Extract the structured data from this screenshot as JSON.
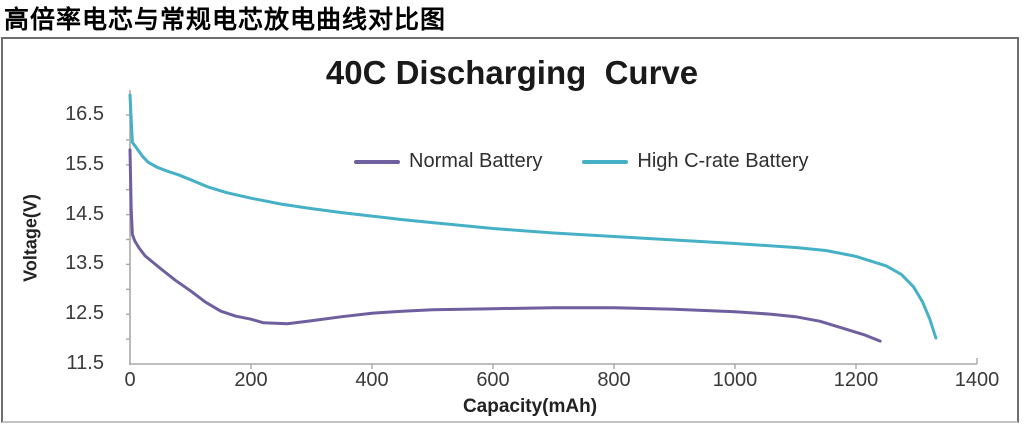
{
  "page": {
    "title": "高倍率电芯与常规电芯放电曲线对比图"
  },
  "chart_data": {
    "type": "line",
    "title": "40C Discharging  Curve",
    "xlabel": "Capacity(mAh)",
    "ylabel": "Voltage(V)",
    "xlim": [
      0,
      1400
    ],
    "ylim": [
      11.5,
      17.0
    ],
    "xticks": [
      0,
      200,
      400,
      600,
      800,
      1000,
      1200,
      1400
    ],
    "yticks": [
      16.5,
      15.5,
      14.5,
      13.5,
      12.5,
      11.5
    ],
    "grid": false,
    "legend_position": "top-center-inside",
    "axis_color": "#a8a8a8",
    "tick_label_color": "#3a3a3a",
    "series": [
      {
        "name": "Normal Battery",
        "color": "#6f5f9f",
        "points": [
          [
            0,
            15.8
          ],
          [
            2,
            14.6
          ],
          [
            4,
            14.1
          ],
          [
            8,
            13.97
          ],
          [
            15,
            13.83
          ],
          [
            25,
            13.67
          ],
          [
            50,
            13.42
          ],
          [
            75,
            13.18
          ],
          [
            100,
            12.97
          ],
          [
            125,
            12.74
          ],
          [
            150,
            12.56
          ],
          [
            175,
            12.46
          ],
          [
            200,
            12.4
          ],
          [
            220,
            12.33
          ],
          [
            260,
            12.31
          ],
          [
            300,
            12.37
          ],
          [
            350,
            12.45
          ],
          [
            400,
            12.52
          ],
          [
            450,
            12.56
          ],
          [
            500,
            12.59
          ],
          [
            600,
            12.61
          ],
          [
            700,
            12.63
          ],
          [
            800,
            12.63
          ],
          [
            900,
            12.6
          ],
          [
            1000,
            12.55
          ],
          [
            1060,
            12.5
          ],
          [
            1100,
            12.45
          ],
          [
            1140,
            12.36
          ],
          [
            1180,
            12.21
          ],
          [
            1215,
            12.08
          ],
          [
            1240,
            11.96
          ]
        ]
      },
      {
        "name": "High C-rate Battery",
        "color": "#45b0c6",
        "points": [
          [
            0,
            16.9
          ],
          [
            2,
            16.4
          ],
          [
            4,
            15.95
          ],
          [
            10,
            15.85
          ],
          [
            20,
            15.68
          ],
          [
            30,
            15.55
          ],
          [
            45,
            15.45
          ],
          [
            60,
            15.38
          ],
          [
            80,
            15.3
          ],
          [
            100,
            15.2
          ],
          [
            130,
            15.05
          ],
          [
            160,
            14.94
          ],
          [
            200,
            14.83
          ],
          [
            250,
            14.71
          ],
          [
            300,
            14.62
          ],
          [
            350,
            14.54
          ],
          [
            400,
            14.47
          ],
          [
            450,
            14.4
          ],
          [
            500,
            14.34
          ],
          [
            600,
            14.22
          ],
          [
            700,
            14.13
          ],
          [
            800,
            14.06
          ],
          [
            900,
            13.99
          ],
          [
            1000,
            13.92
          ],
          [
            1100,
            13.84
          ],
          [
            1150,
            13.78
          ],
          [
            1200,
            13.66
          ],
          [
            1250,
            13.47
          ],
          [
            1275,
            13.3
          ],
          [
            1295,
            13.05
          ],
          [
            1310,
            12.75
          ],
          [
            1322,
            12.4
          ],
          [
            1332,
            12.02
          ]
        ]
      }
    ]
  }
}
